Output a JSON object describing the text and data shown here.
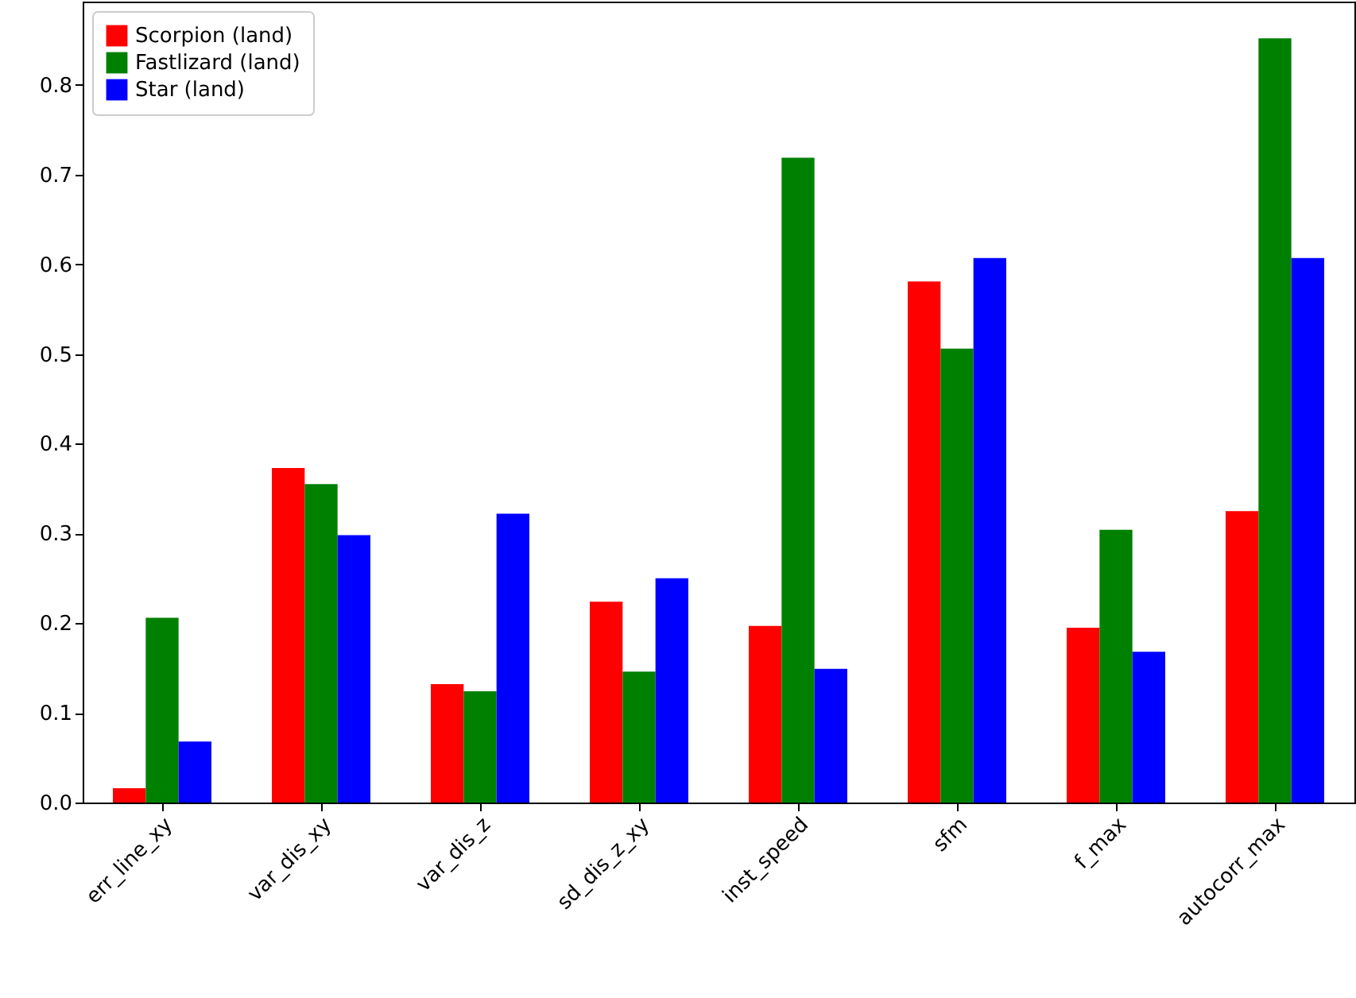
{
  "chart_data": {
    "type": "bar",
    "categories": [
      "err_line_xy",
      "var_dis_xy",
      "var_dis_z",
      "sd_dis_z_xy",
      "inst_speed",
      "sfm",
      "f_max",
      "autocorr_max"
    ],
    "series": [
      {
        "name": "Scorpion (land)",
        "color": "#ff0000",
        "values": [
          0.016,
          0.373,
          0.132,
          0.224,
          0.197,
          0.581,
          0.195,
          0.325
        ]
      },
      {
        "name": "Fastlizard (land)",
        "color": "#008000",
        "values": [
          0.206,
          0.355,
          0.124,
          0.146,
          0.719,
          0.506,
          0.304,
          0.852
        ]
      },
      {
        "name": "Star (land)",
        "color": "#0000ff",
        "values": [
          0.068,
          0.298,
          0.322,
          0.25,
          0.149,
          0.607,
          0.168,
          0.607
        ]
      }
    ],
    "ylim": [
      0,
      0.893
    ],
    "yticks": [
      {
        "value": 0,
        "label": "0.0"
      },
      0.1,
      0.2,
      0.3,
      0.4,
      0.5,
      0.6,
      0.7,
      0.8
    ],
    "legend": "top left",
    "grid": false
  }
}
